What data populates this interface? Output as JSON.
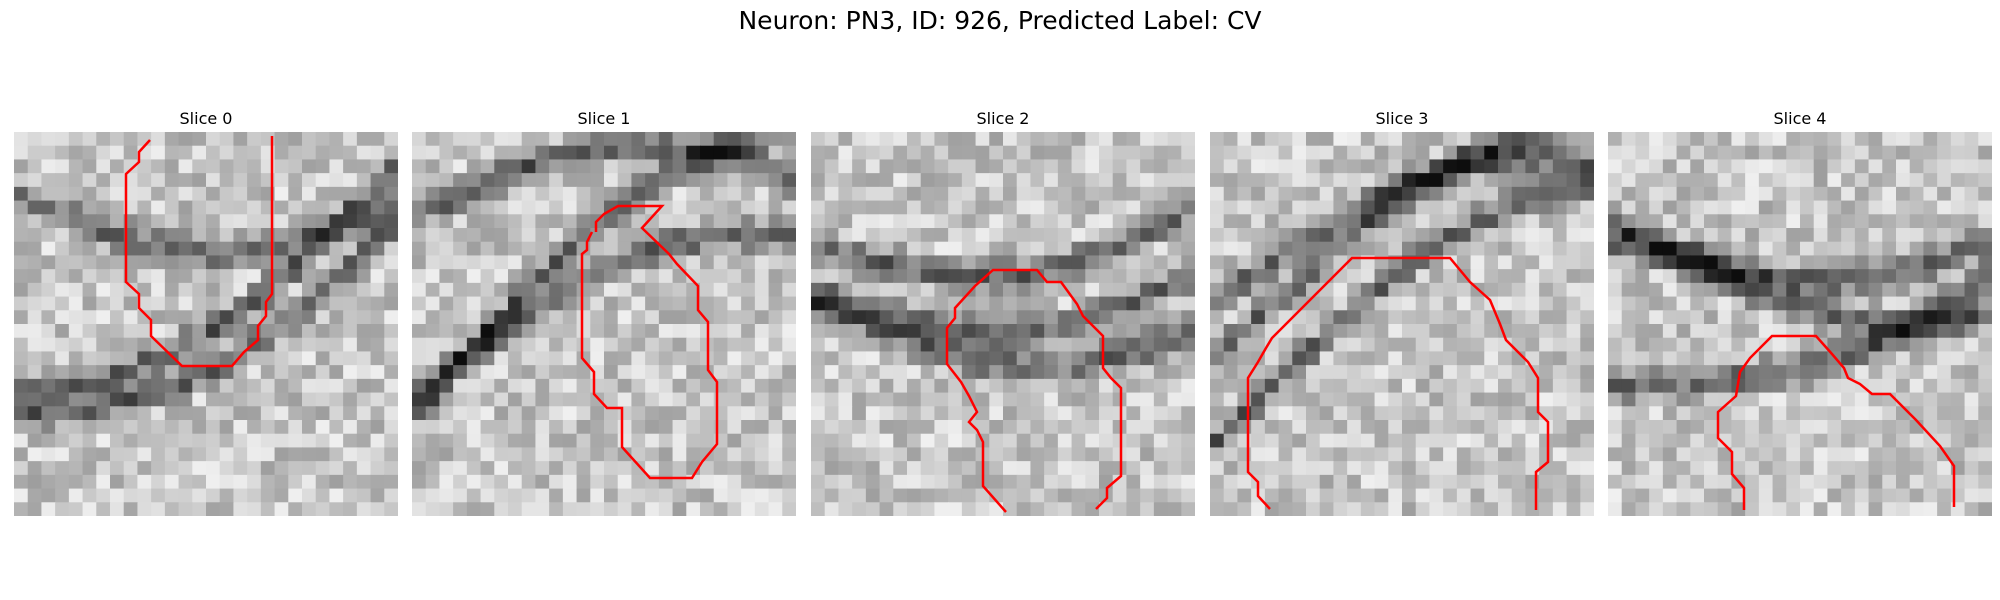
{
  "figure": {
    "title": "Neuron: PN3, ID: 926, Predicted Label: CV",
    "contour_color": "#ff0000",
    "panels": [
      {
        "title": "Slice 0",
        "tone": "membrane-curve-left"
      },
      {
        "title": "Slice 1",
        "tone": "cell-with-dark-ring"
      },
      {
        "title": "Slice 2",
        "tone": "bright-cell-center"
      },
      {
        "title": "Slice 3",
        "tone": "dark-ring-right"
      },
      {
        "title": "Slice 4",
        "tone": "faint-texture"
      }
    ]
  }
}
